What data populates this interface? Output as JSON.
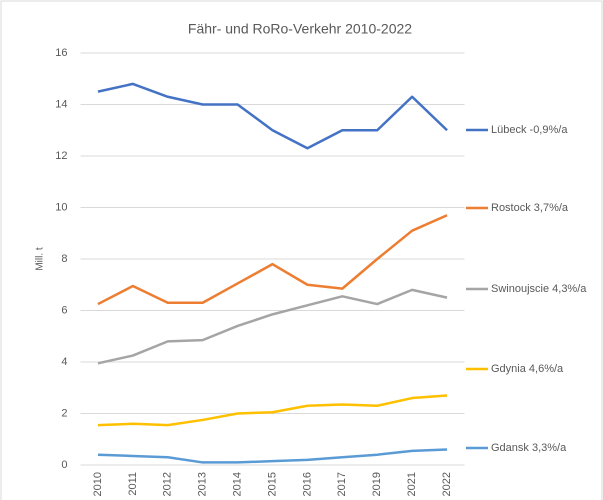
{
  "chart_data": {
    "type": "line",
    "title": "Fähr- und RoRo-Verkehr 2010-2022",
    "y_label": "Mill. t",
    "categories": [
      "2010",
      "2011",
      "2012",
      "2013",
      "2014",
      "2015",
      "2016",
      "2017",
      "2019",
      "2021",
      "2022"
    ],
    "series": [
      {
        "name": "Lübeck -0,9%/a",
        "color": "#4472c4",
        "values": [
          14.5,
          14.8,
          14.3,
          14.0,
          14.0,
          13.0,
          12.3,
          13.0,
          13.0,
          14.3,
          13.0
        ]
      },
      {
        "name": "Rostock 3,7%/a",
        "color": "#ed7d31",
        "values": [
          6.25,
          6.95,
          6.3,
          6.3,
          7.05,
          7.8,
          7.0,
          6.85,
          8.0,
          9.1,
          9.7
        ]
      },
      {
        "name": "Swinoujscie 4,3%/a",
        "color": "#a5a5a5",
        "values": [
          3.95,
          4.25,
          4.8,
          4.85,
          5.4,
          5.85,
          6.2,
          6.55,
          6.25,
          6.8,
          6.5
        ]
      },
      {
        "name": "Gdynia 4,6%/a",
        "color": "#ffc000",
        "values": [
          1.55,
          1.6,
          1.55,
          1.75,
          2.0,
          2.05,
          2.3,
          2.35,
          2.3,
          2.6,
          2.7
        ]
      },
      {
        "name": "Gdansk 3,3%/a",
        "color": "#5b9bd5",
        "values": [
          0.4,
          0.35,
          0.3,
          0.1,
          0.1,
          0.15,
          0.2,
          0.3,
          0.4,
          0.55,
          0.6
        ]
      }
    ],
    "ylim": [
      0,
      16
    ],
    "yticks": [
      0,
      2,
      4,
      6,
      8,
      10,
      12,
      14,
      16
    ],
    "grid": true
  }
}
